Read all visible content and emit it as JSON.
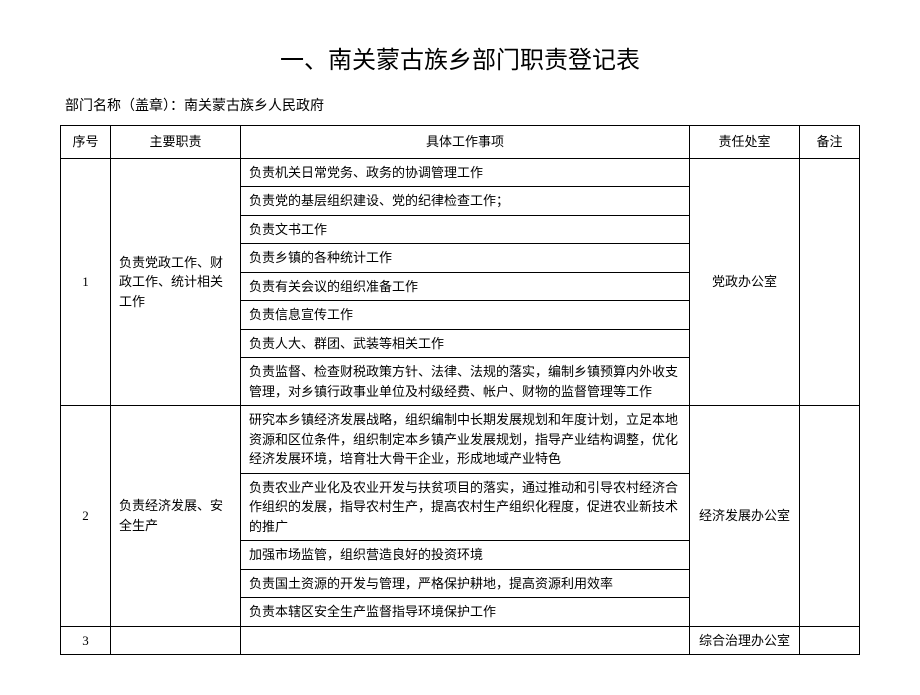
{
  "title": "一、南关蒙古族乡部门职责登记表",
  "subtitle": "部门名称（盖章）：南关蒙古族乡人民政府",
  "headers": {
    "seq": "序号",
    "main": "主要职责",
    "detail": "具体工作事项",
    "dept": "责任处室",
    "note": "备注"
  },
  "rows": [
    {
      "seq": "1",
      "main": "负责党政工作、财政工作、统计相关工作",
      "details": [
        "负责机关日常党务、政务的协调管理工作",
        "负责党的基层组织建设、党的纪律检查工作；",
        "负责文书工作",
        "负责乡镇的各种统计工作",
        "负责有关会议的组织准备工作",
        "负责信息宣传工作",
        "负责人大、群团、武装等相关工作",
        "负责监督、检查财税政策方针、法律、法规的落实，编制乡镇预算内外收支管理，对乡镇行政事业单位及村级经费、帐户、财物的监督管理等工作"
      ],
      "dept": "党政办公室",
      "note": ""
    },
    {
      "seq": "2",
      "main": "负责经济发展、安全生产",
      "details": [
        "研究本乡镇经济发展战略，组织编制中长期发展规划和年度计划，立足本地资源和区位条件，组织制定本乡镇产业发展规划，指导产业结构调整，优化经济发展环境，培育壮大骨干企业，形成地域产业特色",
        "负责农业产业化及农业开发与扶贫项目的落实，通过推动和引导农村经济合作组织的发展，指导农村生产，提高农村生产组织化程度，促进农业新技术的推广",
        "加强市场监管，组织营造良好的投资环境",
        "负责国土资源的开发与管理，严格保护耕地，提高资源利用效率",
        "负责本辖区安全生产监督指导环境保护工作"
      ],
      "dept": "经济发展办公室",
      "note": ""
    },
    {
      "seq": "3",
      "main": "",
      "details": [
        ""
      ],
      "dept": "综合治理办公室",
      "note": ""
    }
  ]
}
